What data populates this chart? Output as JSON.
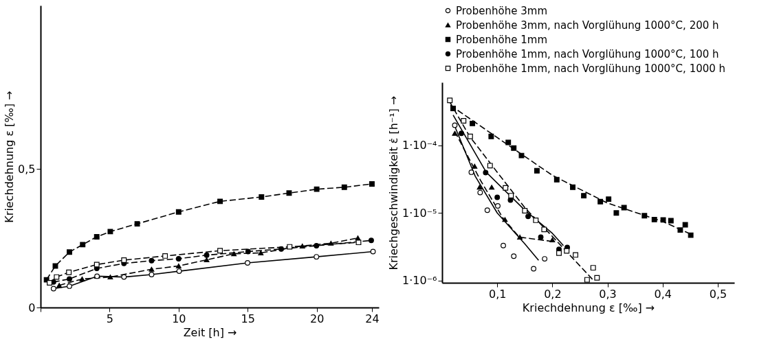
{
  "chart_data": [
    {
      "type": "line",
      "xlabel": "Zeit [h] →",
      "ylabel": "Kriechdehnung ε [‰] →",
      "xlim": [
        0,
        24.5
      ],
      "ylim": [
        0,
        1.09
      ],
      "xticks": [
        {
          "value": 0,
          "label": null
        },
        5,
        10,
        15,
        20,
        24
      ],
      "yticks": [
        {
          "value": 0,
          "label": "0"
        },
        {
          "value": 0.5,
          "label": "0,5"
        }
      ],
      "series": [
        {
          "color": "#000000",
          "colors": [
            "#ffffff",
            "#ffffff",
            "#ffffff",
            "#ffffff",
            "#ffffff",
            "#ffffff",
            "#ffffff",
            "#ffffff",
            "#ffffff"
          ],
          "marker": "circle",
          "line_style": "solid",
          "x": [
            0.94,
            2.09,
            4.09,
            6.04,
            8.04,
            10.04,
            14.99,
            19.98,
            24.08
          ],
          "values": [
            0.068,
            0.077,
            0.113,
            0.11,
            0.119,
            0.131,
            0.161,
            0.183,
            0.202
          ]
        },
        {
          "color": "#000000",
          "marker": "triangle",
          "line_style": "dashed",
          "x": [
            1.35,
            3.01,
            5.05,
            8.04,
            10.0,
            12.03,
            14.0,
            15.95,
            18.96,
            21.03,
            22.98
          ],
          "values": [
            0.08,
            0.103,
            0.11,
            0.138,
            0.15,
            0.172,
            0.194,
            0.197,
            0.222,
            0.232,
            0.251
          ]
        },
        {
          "color": "#000000",
          "marker": "square",
          "line_style": "dashed",
          "x": [
            0.43,
            1.07,
            2.09,
            3.05,
            4.07,
            5.05,
            7.0,
            10.0,
            13.0,
            16.0,
            18.0,
            20.0,
            22.0,
            24.0
          ],
          "values": [
            0.1,
            0.15,
            0.2,
            0.227,
            0.255,
            0.274,
            0.302,
            0.345,
            0.383,
            0.399,
            0.413,
            0.427,
            0.434,
            0.446
          ]
        },
        {
          "color": "#000000",
          "marker": "circle",
          "line_style": "dashed",
          "x": [
            0.94,
            2.09,
            4.07,
            6.04,
            8.04,
            10.0,
            12.03,
            15.03,
            17.43,
            19.98,
            23.95
          ],
          "values": [
            0.092,
            0.103,
            0.141,
            0.159,
            0.169,
            0.176,
            0.189,
            0.202,
            0.211,
            0.223,
            0.242
          ]
        },
        {
          "color": "#000000",
          "colors": [
            "#ffffff",
            "#ffffff",
            "#ffffff",
            "#ffffff",
            "#ffffff",
            "#ffffff",
            "#ffffff",
            "#ffffff",
            "#ffffff"
          ],
          "marker": "square",
          "line_style": "dashed",
          "x": [
            0.65,
            1.16,
            2.05,
            4.07,
            6.04,
            9.02,
            13.0,
            18.04,
            23.03
          ],
          "values": [
            0.089,
            0.11,
            0.127,
            0.155,
            0.171,
            0.186,
            0.205,
            0.219,
            0.235
          ]
        }
      ]
    },
    {
      "type": "scatter",
      "xlabel": "Kriechdehnung ε [‰] →",
      "ylabel": "Kriechgeschwindigkeit ε̇ [h⁻¹] →",
      "log": true,
      "legend": "top",
      "xlim": [
        0,
        0.53
      ],
      "ylim": [
        9.3e-07,
        0.00085
      ],
      "xticks": [
        {
          "value": 0.1,
          "label": "0,1"
        },
        {
          "value": 0.2,
          "label": "0,2"
        },
        {
          "value": 0.3,
          "label": "0,3"
        },
        {
          "value": 0.4,
          "label": "0,4"
        },
        {
          "value": 0.5,
          "label": "0,5"
        }
      ],
      "yticks": [
        {
          "value": 1e-06,
          "label": "1·10⁻⁶"
        },
        {
          "value": 1e-05,
          "label": "1·10⁻⁵"
        },
        {
          "value": 0.0001,
          "label": "1·10⁻⁴"
        }
      ],
      "series": [
        {
          "name": "Probenhöhe 3mm",
          "color": "#000000",
          "colors": [
            "#ffffff",
            "#ffffff",
            "#ffffff",
            "#ffffff",
            "#ffffff",
            "#ffffff",
            "#ffffff",
            "#ffffff",
            "#ffffff"
          ],
          "marker": "circle",
          "x": [
            0.023,
            0.053,
            0.069,
            0.082,
            0.101,
            0.111,
            0.13,
            0.166,
            0.186
          ],
          "values": [
            0.000198,
            4e-05,
            2e-05,
            1.1e-05,
            1.27e-05,
            3.3e-06,
            2.3e-06,
            1.5e-06,
            2.1e-06
          ]
        },
        {
          "name": "Probenhöhe 3mm, nach Vorglühung 1000°C, 200 h",
          "color": "#000000",
          "marker": "triangle",
          "x": [
            0.023,
            0.059,
            0.068,
            0.09,
            0.114,
            0.141,
            0.2
          ],
          "values": [
            0.00015,
            4.9e-05,
            2.4e-05,
            2.4e-05,
            8e-06,
            4.4e-06,
            4e-06
          ]
        },
        {
          "name": "Probenhöhe 1mm",
          "color": "#000000",
          "marker": "square",
          "x": [
            0.02,
            0.055,
            0.089,
            0.12,
            0.13,
            0.144,
            0.172,
            0.208,
            0.237,
            0.257,
            0.287,
            0.302,
            0.316,
            0.33,
            0.367,
            0.385,
            0.401,
            0.415,
            0.432,
            0.441,
            0.451
          ],
          "values": [
            0.00035,
            0.00021,
            0.000135,
            0.00011,
            9.1e-05,
            7.05e-05,
            4.2e-05,
            3.1e-05,
            2.4e-05,
            1.8e-05,
            1.47e-05,
            1.6e-05,
            1e-05,
            1.2e-05,
            9.1e-06,
            8e-06,
            7.9e-06,
            7.7e-06,
            5.6e-06,
            6.7e-06,
            4.7e-06
          ]
        },
        {
          "name": "Probenhöhe 1mm, nach Vorglühung 1000°C, 100 h",
          "color": "#000000",
          "marker": "circle",
          "x": [
            0.035,
            0.079,
            0.1,
            0.124,
            0.156,
            0.179,
            0.212,
            0.227
          ],
          "values": [
            0.00015,
            3.95e-05,
            1.7e-05,
            1.55e-05,
            8.9e-06,
            4.4e-06,
            2.9e-06,
            3.1e-06
          ]
        },
        {
          "name": "Probenhöhe 1mm, nach Vorglühung 1000°C, 1000 h",
          "color": "#000000",
          "colors": [
            "#ffffff",
            "#ffffff",
            "#ffffff",
            "#ffffff",
            "#ffffff",
            "#ffffff",
            "#ffffff",
            "#ffffff",
            "#ffffff",
            "#ffffff",
            "#ffffff",
            "#ffffff",
            "#ffffff",
            "#ffffff",
            "#ffffff"
          ],
          "marker": "square",
          "x": [
            0.014,
            0.039,
            0.051,
            0.087,
            0.115,
            0.125,
            0.15,
            0.17,
            0.185,
            0.212,
            0.226,
            0.242,
            0.263,
            0.274,
            0.281
          ],
          "values": [
            0.00046,
            0.00023,
            0.000135,
            5e-05,
            2.35e-05,
            1.8e-05,
            1.08e-05,
            7.8e-06,
            5.7e-06,
            2.55e-06,
            2.75e-06,
            2.4e-06,
            1.03e-06,
            1.55e-06,
            1.1e-06
          ]
        },
        {
          "type": "line",
          "color": "#000000",
          "line_style": "solid",
          "x": [
            0.022,
            0.06,
            0.1,
            0.15,
            0.175
          ],
          "values": [
            0.0002,
            3.5e-05,
            1e-05,
            3.5e-06,
            2e-06
          ]
        },
        {
          "type": "line",
          "color": "#000000",
          "line_style": "dashed",
          "x": [
            0.023,
            0.07,
            0.11,
            0.14,
            0.2
          ],
          "values": [
            0.00016,
            3e-05,
            8.5e-06,
            4.4e-06,
            3.8e-06
          ]
        },
        {
          "type": "line",
          "color": "#000000",
          "line_style": "dashed",
          "x": [
            0.015,
            0.1,
            0.2,
            0.3,
            0.4,
            0.455
          ],
          "values": [
            0.00039,
            0.00013,
            3.6e-05,
            1.4e-05,
            7.5e-06,
            4.7e-06
          ]
        },
        {
          "type": "line",
          "color": "#000000",
          "line_style": "solid",
          "x": [
            0.02,
            0.08,
            0.15,
            0.2,
            0.22
          ],
          "values": [
            0.00028,
            4e-05,
            1.1e-05,
            5e-06,
            3.3e-06
          ]
        },
        {
          "type": "line",
          "color": "#000000",
          "line_style": "dashed",
          "x": [
            0.013,
            0.05,
            0.1,
            0.15,
            0.2,
            0.275
          ],
          "values": [
            0.00045,
            0.000135,
            4e-05,
            1.2e-05,
            4.5e-06,
            1e-06
          ]
        }
      ]
    }
  ]
}
